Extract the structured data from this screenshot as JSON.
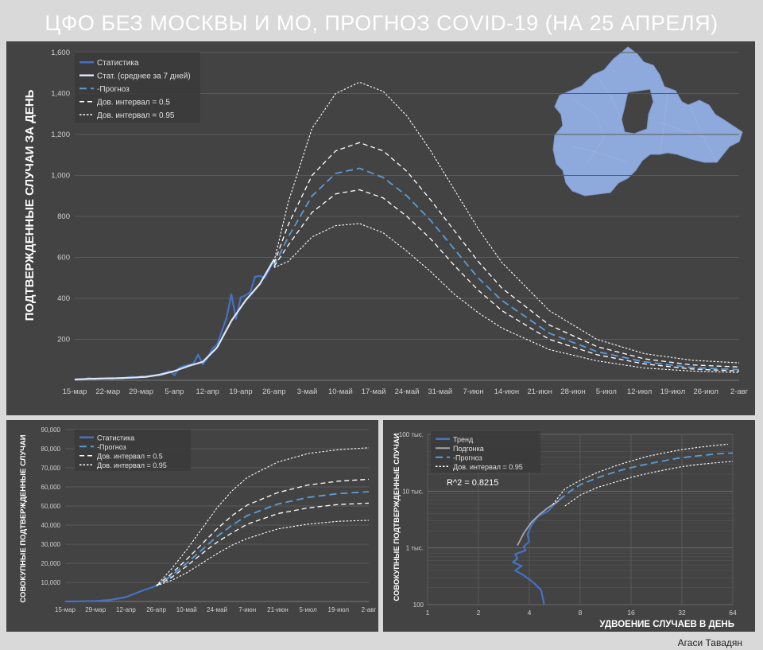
{
  "title": "ЦФО БЕЗ МОСКВЫ И МО, ПРОГНОЗ COVID-19 (НА 25 АПРЕЛЯ)",
  "author": "Агаси Тавадян",
  "colors": {
    "panel_bg": "#434343",
    "frame": "#d9d9d9",
    "stat": "#4472c4",
    "avg": "#dbe5f6",
    "forecast": "#5b9bd5",
    "ci": "#ffffff",
    "map": "#8ea9db",
    "grid": "#5a5a5a",
    "text": "#d0d0d0"
  },
  "icons": {
    "map": "region-map-icon"
  },
  "chart_data": [
    {
      "id": "daily",
      "type": "line",
      "ylabel": "ПОДТВЕРЖДЕННЫЕ СЛУЧАИ ЗА ДЕНЬ",
      "xlabel": "",
      "ylim": [
        0,
        1600
      ],
      "yticks": [
        200,
        400,
        600,
        800,
        "1,000",
        "1,200",
        "1,400",
        "1,600"
      ],
      "xticks": [
        "15-мар",
        "22-мар",
        "29-мар",
        "5-апр",
        "12-апр",
        "19-апр",
        "26-апр",
        "3-май",
        "10-май",
        "17-май",
        "24-май",
        "31-май",
        "7-июн",
        "14-июн",
        "21-июн",
        "28-июн",
        "5-июл",
        "12-июл",
        "19-июл",
        "26-июл",
        "2-авг"
      ],
      "xlim": [
        0,
        140
      ],
      "grid": true,
      "legend_position": "top-left",
      "legend": [
        "Статистика",
        "Стат. (среднее за 7 дней)",
        "-Прогноз",
        "Дов. интервал = 0.5",
        "Дов. интервал = 0.95"
      ],
      "series": [
        {
          "name": "Статистика",
          "style": "stat",
          "x": [
            0,
            1,
            2,
            3,
            4,
            5,
            6,
            7,
            8,
            9,
            10,
            11,
            12,
            13,
            14,
            15,
            16,
            17,
            18,
            19,
            20,
            21,
            22,
            23,
            24,
            25,
            26,
            27,
            28,
            29,
            30,
            31,
            32,
            33,
            34,
            35,
            36,
            37,
            38,
            39,
            40,
            41,
            42
          ],
          "y": [
            3,
            5,
            4,
            13,
            6,
            8,
            9,
            10,
            7,
            12,
            9,
            14,
            18,
            13,
            20,
            16,
            22,
            24,
            30,
            36,
            45,
            25,
            60,
            70,
            75,
            82,
            125,
            78,
            110,
            155,
            175,
            240,
            305,
            420,
            300,
            405,
            415,
            430,
            505,
            510,
            500,
            540,
            590
          ]
        },
        {
          "name": "Стат. (среднее за 7 дней)",
          "style": "avg",
          "x": [
            0,
            3,
            6,
            9,
            12,
            15,
            18,
            21,
            24,
            27,
            30,
            33,
            36,
            39,
            42
          ],
          "y": [
            4,
            7,
            9,
            10,
            13,
            17,
            27,
            45,
            70,
            90,
            160,
            290,
            390,
            470,
            590
          ]
        },
        {
          "name": "-Прогноз",
          "style": "forecast",
          "x": [
            42,
            45,
            50,
            55,
            60,
            65,
            70,
            75,
            80,
            85,
            90,
            100,
            110,
            120,
            130,
            140
          ],
          "y": [
            560,
            700,
            900,
            1010,
            1035,
            990,
            900,
            780,
            640,
            500,
            390,
            230,
            140,
            90,
            62,
            52
          ]
        },
        {
          "name": "Дов. интервал = 0.5",
          "style": "ci50",
          "x": [
            42,
            45,
            50,
            55,
            60,
            65,
            70,
            75,
            80,
            85,
            90,
            100,
            110,
            120,
            130,
            140
          ],
          "y": [
            570,
            760,
            1000,
            1120,
            1160,
            1120,
            1020,
            880,
            730,
            580,
            450,
            270,
            165,
            105,
            75,
            65
          ]
        },
        {
          "name": "Дов. интервал = 0.5",
          "style": "ci50",
          "x": [
            42,
            45,
            50,
            55,
            60,
            65,
            70,
            75,
            80,
            85,
            90,
            100,
            110,
            120,
            130,
            140
          ],
          "y": [
            555,
            660,
            820,
            910,
            930,
            890,
            800,
            690,
            560,
            440,
            340,
            200,
            125,
            80,
            55,
            45
          ]
        },
        {
          "name": "Дов. интервал = 0.95",
          "style": "ci95",
          "x": [
            42,
            45,
            50,
            55,
            60,
            65,
            70,
            75,
            80,
            85,
            90,
            100,
            110,
            120,
            130,
            140
          ],
          "y": [
            580,
            870,
            1230,
            1400,
            1455,
            1410,
            1290,
            1120,
            930,
            740,
            575,
            340,
            200,
            130,
            98,
            85
          ]
        },
        {
          "name": "Дов. интервал = 0.95",
          "style": "ci95",
          "x": [
            42,
            45,
            50,
            55,
            60,
            65,
            70,
            75,
            80,
            85,
            90,
            100,
            110,
            120,
            130,
            140
          ],
          "y": [
            550,
            580,
            700,
            755,
            765,
            720,
            630,
            530,
            420,
            330,
            255,
            150,
            95,
            60,
            45,
            38
          ]
        }
      ]
    },
    {
      "id": "cumulative",
      "type": "line",
      "ylabel": "СОВОКУПНЫЕ ПОДТВЕРЖДЕННЫЕ СЛУЧАИ",
      "xlabel": "",
      "ylim": [
        0,
        90000
      ],
      "yticks": [
        "10,000",
        "20,000",
        "30,000",
        "40,000",
        "50,000",
        "60,000",
        "70,000",
        "80,000",
        "90,000"
      ],
      "xticks": [
        "15-мар",
        "29-мар",
        "12-апр",
        "26-апр",
        "10-май",
        "24-май",
        "7-июн",
        "21-июн",
        "5-июл",
        "19-июл",
        "2-авг"
      ],
      "xlim": [
        0,
        140
      ],
      "grid": true,
      "legend_position": "top-left",
      "legend": [
        "Статистика",
        "-Прогноз",
        "Дов. интервал = 0.5",
        "Дов. интервал = 0.95"
      ],
      "series": [
        {
          "name": "Статистика",
          "style": "stat",
          "x": [
            0,
            7,
            14,
            21,
            28,
            35,
            42
          ],
          "y": [
            10,
            100,
            300,
            800,
            2300,
            5400,
            8200
          ]
        },
        {
          "name": "-Прогноз",
          "style": "forecast",
          "x": [
            42,
            49,
            56,
            63,
            70,
            77,
            84,
            98,
            112,
            126,
            140
          ],
          "y": [
            8200,
            13500,
            20000,
            27000,
            34000,
            40000,
            45000,
            51000,
            54500,
            56500,
            57500
          ]
        },
        {
          "name": "Дов. интервал = 0.5",
          "style": "ci50",
          "x": [
            42,
            49,
            56,
            63,
            70,
            77,
            84,
            98,
            112,
            126,
            140
          ],
          "y": [
            8200,
            14500,
            22000,
            30000,
            38000,
            45000,
            50500,
            57000,
            61000,
            63000,
            64000
          ]
        },
        {
          "name": "Дов. интервал = 0.5",
          "style": "ci50",
          "x": [
            42,
            49,
            56,
            63,
            70,
            77,
            84,
            98,
            112,
            126,
            140
          ],
          "y": [
            8200,
            12500,
            18500,
            25000,
            31000,
            36000,
            40500,
            46000,
            49000,
            50800,
            51500
          ]
        },
        {
          "name": "Дов. интервал = 0.95",
          "style": "ci95",
          "x": [
            42,
            49,
            56,
            63,
            70,
            77,
            84,
            98,
            112,
            126,
            140
          ],
          "y": [
            8200,
            17000,
            27000,
            38000,
            49000,
            58000,
            65000,
            73000,
            77500,
            79500,
            80500
          ]
        },
        {
          "name": "Дов. интервал = 0.95",
          "style": "ci95",
          "x": [
            42,
            49,
            56,
            63,
            70,
            77,
            84,
            98,
            112,
            126,
            140
          ],
          "y": [
            8200,
            11000,
            15000,
            20000,
            25000,
            29500,
            33000,
            38000,
            40500,
            42000,
            42500
          ]
        }
      ]
    },
    {
      "id": "doubling",
      "type": "line",
      "ylabel": "СОВОКУПНЫЕ ПОДТВЕРЖДЕННЫЕ СЛУЧАИ",
      "xlabel": "УДВОЕНИЕ СЛУЧАЕВ В ДЕНЬ",
      "xscale": "log2",
      "yscale": "log10",
      "xlim": [
        1,
        64
      ],
      "ylim": [
        100,
        100000
      ],
      "xticks": [
        "1",
        "2",
        "4",
        "8",
        "16",
        "32",
        "64"
      ],
      "yticks": [
        "100",
        "1 тыс.",
        "10 тыс.",
        "100 тыс."
      ],
      "grid": true,
      "legend_position": "top-left",
      "legend": [
        "Тренд",
        "Подгонка",
        "-Прогноз",
        "Дов. интервал = 0.95"
      ],
      "annotation": "R^2 = 0.8215",
      "series": [
        {
          "name": "Тренд",
          "style": "stat",
          "x": [
            4.9,
            4.7,
            4.2,
            3.7,
            3.3,
            3.6,
            3.2,
            3.4,
            3.3,
            3.8,
            3.7,
            4.0,
            3.9,
            4.1,
            4.5,
            5.2,
            5.5,
            6.0
          ],
          "y": [
            100,
            180,
            250,
            330,
            400,
            480,
            560,
            650,
            780,
            900,
            1050,
            1300,
            1700,
            2500,
            3600,
            4500,
            5500,
            7000
          ]
        },
        {
          "name": "Подгонка",
          "style": "fit",
          "x": [
            3.4,
            3.7,
            4.1,
            4.6,
            5.2,
            6.0
          ],
          "y": [
            1100,
            1800,
            2800,
            3900,
            5200,
            6800
          ]
        },
        {
          "name": "-Прогноз",
          "style": "forecast",
          "x": [
            6,
            7,
            8,
            10,
            13,
            16,
            20,
            26,
            32,
            40,
            50,
            64
          ],
          "y": [
            7000,
            10000,
            13000,
            17000,
            22000,
            26000,
            30000,
            35000,
            39000,
            42000,
            45000,
            47000
          ]
        },
        {
          "name": "Дов. интервал = 0.95",
          "style": "ci95",
          "x": [
            5.5,
            6.5,
            8,
            10,
            13,
            16,
            20,
            26,
            32,
            40,
            50,
            60
          ],
          "y": [
            5800,
            11000,
            15500,
            21000,
            28000,
            34000,
            41000,
            48000,
            54000,
            59000,
            64000,
            67000
          ]
        },
        {
          "name": "Дов. интервал = 0.95",
          "style": "ci95",
          "x": [
            6.5,
            8,
            10,
            13,
            16,
            20,
            26,
            32,
            40,
            50,
            64
          ],
          "y": [
            5500,
            8500,
            11500,
            14500,
            17500,
            20500,
            24000,
            27000,
            29500,
            31500,
            33500
          ]
        }
      ]
    }
  ]
}
